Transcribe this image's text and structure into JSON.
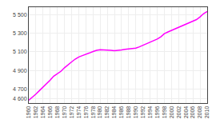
{
  "chart_data": {
    "type": "line",
    "x": [
      1960,
      1961,
      1962,
      1963,
      1964,
      1965,
      1966,
      1967,
      1968,
      1969,
      1970,
      1971,
      1972,
      1973,
      1974,
      1975,
      1976,
      1977,
      1978,
      1979,
      1980,
      1981,
      1982,
      1983,
      1984,
      1985,
      1986,
      1987,
      1988,
      1989,
      1990,
      1991,
      1992,
      1993,
      1994,
      1995,
      1996,
      1997,
      1998,
      1999,
      2000,
      2001,
      2002,
      2003,
      2004,
      2005,
      2006,
      2007,
      2008,
      2009,
      2010
    ],
    "values": [
      4581,
      4612,
      4647,
      4684,
      4720,
      4758,
      4797,
      4839,
      4867,
      4891,
      4929,
      4963,
      4992,
      5022,
      5045,
      5060,
      5072,
      5088,
      5104,
      5117,
      5123,
      5122,
      5119,
      5116,
      5112,
      5114,
      5121,
      5127,
      5130,
      5133,
      5140,
      5154,
      5171,
      5189,
      5205,
      5216,
      5237,
      5262,
      5295,
      5314,
      5330,
      5349,
      5368,
      5384,
      5398,
      5411,
      5427,
      5447,
      5476,
      5511,
      5534
    ],
    "color": "#FF00FF",
    "xlim": [
      1960,
      2010
    ],
    "xticks": [
      1960,
      1962,
      1964,
      1966,
      1968,
      1970,
      1972,
      1974,
      1976,
      1978,
      1980,
      1982,
      1984,
      1986,
      1988,
      1990,
      1992,
      1994,
      1996,
      1998,
      2000,
      2002,
      2004,
      2006,
      2008,
      2010
    ],
    "ylim": [
      4550,
      5580
    ],
    "yticks": [
      {
        "value": 4600,
        "label": "4 600"
      },
      {
        "value": 4700,
        "label": "4 700"
      },
      {
        "value": 4900,
        "label": "4 900"
      },
      {
        "value": 5100,
        "label": "5 100"
      },
      {
        "value": 5300,
        "label": "5 300"
      },
      {
        "value": 5500,
        "label": "5 500"
      }
    ],
    "grid": true
  }
}
